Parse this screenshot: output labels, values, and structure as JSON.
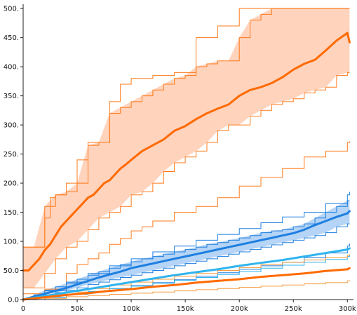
{
  "chart_data": {
    "type": "line",
    "title": "",
    "xlabel": "",
    "ylabel": "",
    "xlim": [
      0,
      305000
    ],
    "ylim": [
      0,
      505
    ],
    "grid": false,
    "x_ticks": [
      {
        "value": 0,
        "label": "0"
      },
      {
        "value": 50000,
        "label": "50k"
      },
      {
        "value": 100000,
        "label": "100k"
      },
      {
        "value": 150000,
        "label": "150k"
      },
      {
        "value": 200000,
        "label": "200k"
      },
      {
        "value": 250000,
        "label": "250k"
      },
      {
        "value": 300000,
        "label": "300k"
      }
    ],
    "y_ticks": [
      {
        "value": 0,
        "label": "0.0"
      },
      {
        "value": 50,
        "label": "50.0"
      },
      {
        "value": 100,
        "label": "100."
      },
      {
        "value": 150,
        "label": "150."
      },
      {
        "value": 200,
        "label": "200."
      },
      {
        "value": 250,
        "label": "250."
      },
      {
        "value": 300,
        "label": "300."
      },
      {
        "value": 350,
        "label": "350."
      },
      {
        "value": 400,
        "label": "400."
      },
      {
        "value": 450,
        "label": "450."
      },
      {
        "value": 500,
        "label": "500."
      }
    ],
    "colors": {
      "orange_main": "#ff6a00",
      "orange_band": "#ffcbb0",
      "orange_thin": "#ff7a1a",
      "blue_main": "#1e7fe0",
      "blue_band": "#a8cdf5",
      "lightblue_main": "#30b4ee",
      "lightorange_thin": "#f39a3e"
    },
    "bands": [
      {
        "color": "orange_band",
        "edge": "orange_thin",
        "x": [
          0,
          10000,
          20000,
          30000,
          40000,
          50000,
          60000,
          70000,
          80000,
          90000,
          100000,
          110000,
          120000,
          130000,
          140000,
          150000,
          160000,
          170000,
          180000,
          190000,
          200000,
          210000,
          220000,
          230000,
          240000,
          250000,
          260000,
          270000,
          280000,
          290000,
          300000,
          302000
        ],
        "upper": [
          90,
          90,
          160,
          180,
          185,
          200,
          265,
          270,
          320,
          330,
          340,
          350,
          360,
          370,
          380,
          385,
          400,
          405,
          410,
          410,
          450,
          480,
          490,
          500,
          500,
          500,
          500,
          500,
          500,
          500,
          500,
          500
        ],
        "lower": [
          20,
          20,
          45,
          70,
          90,
          100,
          120,
          140,
          150,
          160,
          180,
          185,
          200,
          220,
          235,
          245,
          255,
          270,
          290,
          300,
          300,
          315,
          325,
          335,
          340,
          345,
          355,
          360,
          365,
          385,
          390,
          390
        ]
      },
      {
        "color": "blue_band",
        "edge": "blue_main",
        "x": [
          0,
          10000,
          20000,
          30000,
          40000,
          50000,
          60000,
          70000,
          80000,
          90000,
          100000,
          110000,
          120000,
          130000,
          140000,
          150000,
          160000,
          170000,
          180000,
          190000,
          200000,
          210000,
          220000,
          230000,
          240000,
          250000,
          260000,
          270000,
          280000,
          290000,
          300000,
          302000
        ],
        "upper": [
          0,
          8,
          16,
          22,
          28,
          35,
          42,
          48,
          54,
          60,
          65,
          70,
          74,
          78,
          82,
          86,
          90,
          95,
          98,
          102,
          106,
          110,
          115,
          118,
          120,
          125,
          130,
          140,
          150,
          160,
          170,
          170
        ],
        "lower": [
          0,
          3,
          8,
          12,
          16,
          20,
          26,
          30,
          34,
          38,
          42,
          46,
          50,
          54,
          58,
          62,
          66,
          70,
          74,
          78,
          82,
          86,
          90,
          94,
          98,
          102,
          106,
          110,
          115,
          125,
          130,
          130
        ]
      }
    ],
    "series": [
      {
        "color": "orange_main",
        "width": 3,
        "x": [
          0,
          5000,
          10000,
          15000,
          20000,
          25000,
          30000,
          35000,
          40000,
          45000,
          50000,
          55000,
          60000,
          65000,
          70000,
          75000,
          80000,
          85000,
          90000,
          95000,
          100000,
          110000,
          120000,
          130000,
          140000,
          150000,
          160000,
          170000,
          180000,
          190000,
          200000,
          210000,
          220000,
          230000,
          240000,
          250000,
          260000,
          270000,
          280000,
          290000,
          300000,
          302000
        ],
        "y": [
          50,
          50,
          60,
          70,
          85,
          95,
          110,
          125,
          135,
          145,
          155,
          165,
          175,
          180,
          190,
          200,
          205,
          215,
          225,
          232,
          240,
          255,
          265,
          275,
          290,
          298,
          310,
          320,
          328,
          335,
          350,
          360,
          365,
          372,
          382,
          395,
          405,
          412,
          428,
          445,
          458,
          442
        ]
      },
      {
        "color": "blue_main",
        "width": 3,
        "x": [
          0,
          10000,
          20000,
          30000,
          40000,
          50000,
          60000,
          70000,
          80000,
          90000,
          100000,
          110000,
          120000,
          130000,
          140000,
          150000,
          160000,
          170000,
          180000,
          190000,
          200000,
          210000,
          220000,
          230000,
          240000,
          250000,
          260000,
          270000,
          280000,
          290000,
          300000,
          302000
        ],
        "y": [
          0,
          5,
          10,
          15,
          20,
          26,
          32,
          38,
          43,
          48,
          54,
          58,
          62,
          66,
          70,
          74,
          78,
          82,
          86,
          90,
          94,
          98,
          102,
          106,
          110,
          114,
          120,
          128,
          135,
          142,
          148,
          152
        ]
      },
      {
        "color": "lightblue_main",
        "width": 3,
        "x": [
          0,
          20000,
          40000,
          60000,
          80000,
          100000,
          120000,
          140000,
          160000,
          180000,
          200000,
          220000,
          240000,
          260000,
          280000,
          300000,
          302000
        ],
        "y": [
          0,
          6,
          12,
          18,
          24,
          30,
          36,
          42,
          47,
          52,
          58,
          63,
          68,
          74,
          80,
          86,
          88
        ]
      },
      {
        "color": "orange_main",
        "width": 3,
        "x": [
          0,
          20000,
          40000,
          60000,
          80000,
          100000,
          120000,
          140000,
          160000,
          180000,
          200000,
          220000,
          240000,
          260000,
          280000,
          300000,
          302000
        ],
        "y": [
          0,
          4,
          8,
          11,
          15,
          18,
          22,
          25,
          29,
          32,
          35,
          39,
          42,
          45,
          49,
          52,
          54
        ]
      }
    ],
    "thin_lines": [
      {
        "color": "orange_thin",
        "x": [
          0,
          10000,
          20000,
          25000,
          30000,
          40000,
          50000,
          60000,
          70000,
          80000,
          90000,
          100000,
          120000,
          140000,
          150000,
          160000,
          180000,
          200000,
          220000,
          240000,
          250000,
          260000,
          280000,
          300000,
          302000
        ],
        "y": [
          90,
          90,
          140,
          175,
          180,
          200,
          240,
          270,
          270,
          340,
          370,
          380,
          385,
          390,
          390,
          450,
          470,
          500,
          500,
          500,
          500,
          500,
          500,
          500,
          500
        ]
      },
      {
        "color": "orange_thin",
        "x": [
          0,
          20000,
          40000,
          50000,
          60000,
          70000,
          80000,
          90000,
          100000,
          110000,
          120000,
          140000,
          160000,
          180000,
          200000,
          220000,
          240000,
          260000,
          280000,
          300000,
          302000
        ],
        "y": [
          10,
          18,
          45,
          60,
          70,
          80,
          95,
          105,
          118,
          125,
          135,
          150,
          160,
          175,
          195,
          210,
          225,
          245,
          255,
          270,
          272
        ]
      },
      {
        "color": "blue_main",
        "x": [
          0,
          20000,
          40000,
          60000,
          80000,
          100000,
          120000,
          140000,
          160000,
          180000,
          200000,
          220000,
          240000,
          260000,
          280000,
          300000,
          302000
        ],
        "y": [
          0,
          15,
          30,
          45,
          58,
          70,
          82,
          92,
          102,
          112,
          122,
          132,
          142,
          150,
          165,
          180,
          185
        ]
      },
      {
        "color": "blue_main",
        "x": [
          0,
          20000,
          40000,
          60000,
          80000,
          100000,
          120000,
          140000,
          160000,
          180000,
          200000,
          220000,
          240000,
          260000,
          280000,
          300000,
          302000
        ],
        "y": [
          0,
          4,
          9,
          14,
          19,
          24,
          29,
          34,
          40,
          46,
          52,
          58,
          64,
          72,
          80,
          92,
          96
        ]
      },
      {
        "color": "lightblue_main",
        "x": [
          0,
          20000,
          40000,
          60000,
          80000,
          100000,
          120000,
          140000,
          160000,
          180000,
          200000,
          220000,
          240000,
          260000,
          280000,
          300000,
          302000
        ],
        "y": [
          0,
          4,
          9,
          14,
          19,
          23,
          28,
          33,
          38,
          43,
          48,
          54,
          59,
          64,
          69,
          74,
          76
        ]
      },
      {
        "color": "lightorange_thin",
        "x": [
          0,
          20000,
          40000,
          60000,
          80000,
          100000,
          120000,
          140000,
          160000,
          180000,
          200000,
          220000,
          240000,
          260000,
          280000,
          300000,
          302000
        ],
        "y": [
          0,
          7,
          13,
          19,
          25,
          30,
          35,
          40,
          45,
          50,
          55,
          60,
          64,
          68,
          72,
          76,
          78
        ]
      },
      {
        "color": "lightorange_thin",
        "x": [
          0,
          20000,
          40000,
          60000,
          80000,
          100000,
          120000,
          140000,
          160000,
          180000,
          200000,
          220000,
          240000,
          260000,
          280000,
          300000,
          302000
        ],
        "y": [
          0,
          2,
          5,
          7,
          9,
          11,
          13,
          15,
          17,
          19,
          21,
          23,
          25,
          27,
          29,
          32,
          33
        ]
      }
    ]
  }
}
